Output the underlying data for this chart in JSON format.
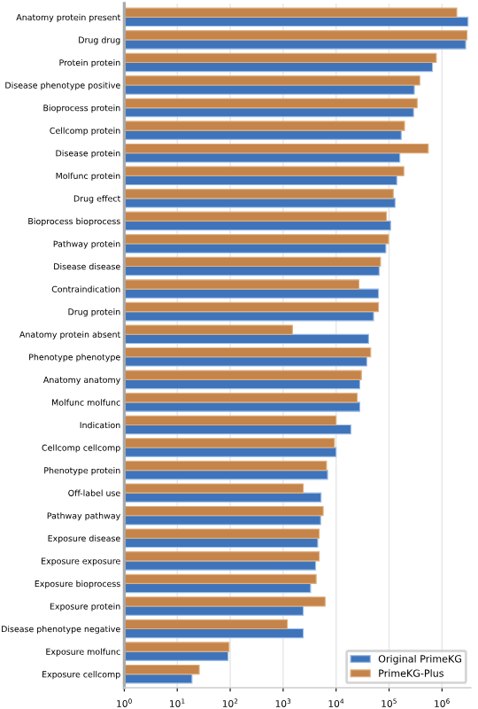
{
  "chart_data": {
    "type": "bar",
    "orientation": "horizontal",
    "log": "x",
    "grid": "x",
    "legend": "lower right",
    "categories": [
      "Anatomy protein present",
      "Drug drug",
      "Protein protein",
      "Disease phenotype positive",
      "Bioprocess protein",
      "Cellcomp protein",
      "Disease protein",
      "Molfunc protein",
      "Drug effect",
      "Bioprocess bioprocess",
      "Pathway protein",
      "Disease disease",
      "Contraindication",
      "Drug protein",
      "Anatomy protein absent",
      "Phenotype phenotype",
      "Anatomy anatomy",
      "Molfunc molfunc",
      "Indication",
      "Cellcomp cellcomp",
      "Phenotype protein",
      "Off-label use",
      "Pathway pathway",
      "Exposure disease",
      "Exposure exposure",
      "Exposure bioprocess",
      "Exposure protein",
      "Disease phenotype negative",
      "Exposure molfunc",
      "Exposure cellcomp"
    ],
    "series": [
      {
        "name": "Original PrimeKG",
        "color": "#3f74ba",
        "values": [
          3100000,
          2800000,
          660000,
          300000,
          290000,
          170000,
          160000,
          140000,
          130000,
          107000,
          87000,
          65000,
          63000,
          51000,
          41000,
          38000,
          28000,
          28000,
          19000,
          10000,
          6900,
          5200,
          5100,
          4500,
          4100,
          3300,
          2400,
          2400,
          91,
          19
        ]
      },
      {
        "name": "PrimeKG-Plus",
        "color": "#c5844a",
        "values": [
          1900000,
          2970000,
          780000,
          380000,
          340000,
          196000,
          550000,
          190000,
          120000,
          89000,
          98000,
          69000,
          27000,
          63000,
          1500,
          45000,
          30000,
          25000,
          10000,
          9300,
          6600,
          2400,
          5700,
          4800,
          4800,
          4200,
          6200,
          1200,
          95,
          26
        ]
      }
    ],
    "xlim": [
      1,
      3500000
    ],
    "xticks": [
      {
        "value": 1,
        "label": "10$^{0}$"
      },
      {
        "value": 10,
        "label": "10$^{1}$"
      },
      {
        "value": 100,
        "label": "10$^{2}$"
      },
      {
        "value": 1000,
        "label": "10$^{3}$"
      },
      {
        "value": 10000,
        "label": "10$^{4}$"
      },
      {
        "value": 100000,
        "label": "10$^{5}$"
      },
      {
        "value": 1000000,
        "label": "10$^{6}$"
      }
    ]
  }
}
